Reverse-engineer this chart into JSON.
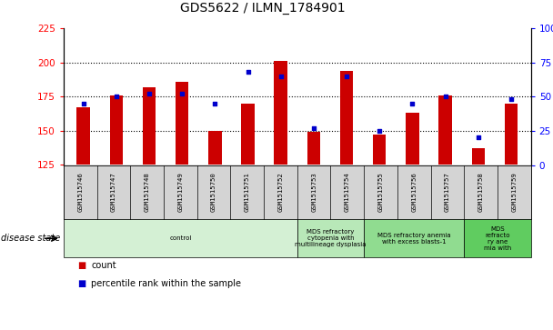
{
  "title": "GDS5622 / ILMN_1784901",
  "samples": [
    "GSM1515746",
    "GSM1515747",
    "GSM1515748",
    "GSM1515749",
    "GSM1515750",
    "GSM1515751",
    "GSM1515752",
    "GSM1515753",
    "GSM1515754",
    "GSM1515755",
    "GSM1515756",
    "GSM1515757",
    "GSM1515758",
    "GSM1515759"
  ],
  "counts": [
    167,
    176,
    182,
    186,
    150,
    170,
    201,
    149,
    194,
    147,
    163,
    176,
    137,
    170
  ],
  "percentile_ranks": [
    45,
    50,
    52,
    52,
    45,
    68,
    65,
    27,
    65,
    25,
    45,
    50,
    20,
    48
  ],
  "ylim_left": [
    125,
    225
  ],
  "ylim_right": [
    0,
    100
  ],
  "yticks_left": [
    125,
    150,
    175,
    200,
    225
  ],
  "yticks_right": [
    0,
    25,
    50,
    75,
    100
  ],
  "bar_color": "#cc0000",
  "dot_color": "#0000cc",
  "background_color": "#ffffff",
  "plot_bg_color": "#ffffff",
  "disease_groups": [
    {
      "label": "control",
      "start": 0,
      "end": 7,
      "color": "#d4f0d4"
    },
    {
      "label": "MDS refractory\ncytopenia with\nmultilineage dysplasia",
      "start": 7,
      "end": 9,
      "color": "#b8e8b8"
    },
    {
      "label": "MDS refractory anemia\nwith excess blasts-1",
      "start": 9,
      "end": 12,
      "color": "#90dc90"
    },
    {
      "label": "MDS\nrefracto\nry ane\nmia with",
      "start": 12,
      "end": 14,
      "color": "#60cc60"
    }
  ]
}
